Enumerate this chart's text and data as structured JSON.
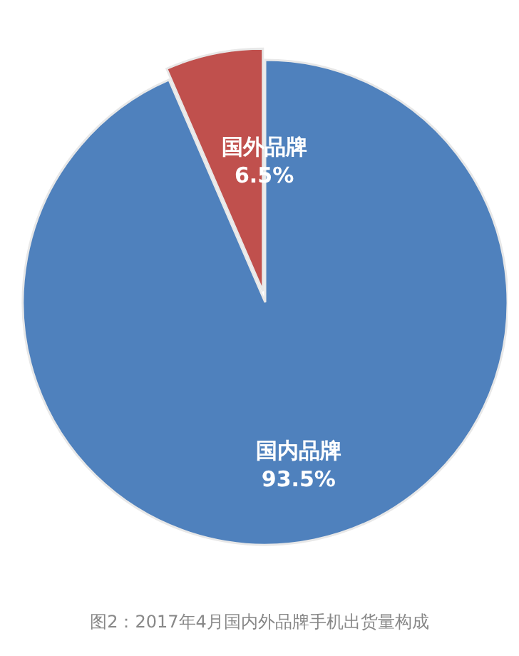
{
  "chart_data": {
    "type": "pie",
    "categories": [
      "国外品牌",
      "国内品牌"
    ],
    "values": [
      6.5,
      93.5
    ],
    "colors": [
      "#c0504d",
      "#4f81bd"
    ],
    "value_labels": [
      "6.5%",
      "93.5%"
    ],
    "annotations": [
      "图2：2017年4月国内外品牌手机出货量构成"
    ]
  }
}
